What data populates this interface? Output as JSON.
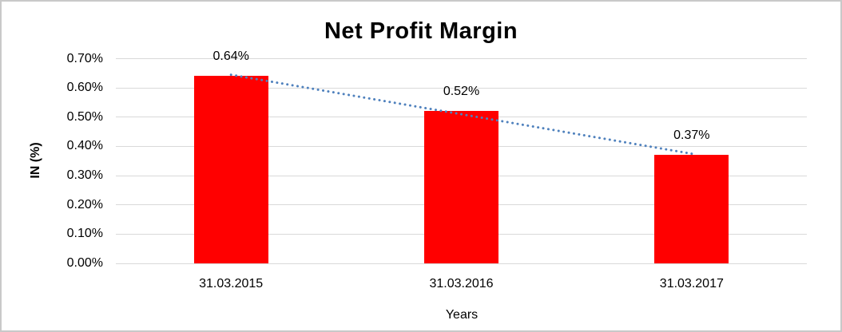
{
  "chart_data": {
    "type": "bar",
    "title": "Net Profit Margin",
    "xlabel": "Years",
    "ylabel": "IN (%)",
    "categories": [
      "31.03.2015",
      "31.03.2016",
      "31.03.2017"
    ],
    "values": [
      0.64,
      0.52,
      0.37
    ],
    "data_labels": [
      "0.64%",
      "0.52%",
      "0.37%"
    ],
    "y_ticks": [
      "0.00%",
      "0.10%",
      "0.20%",
      "0.30%",
      "0.40%",
      "0.50%",
      "0.60%",
      "0.70%"
    ],
    "ylim": [
      0,
      0.7
    ],
    "grid": "horizontal-only",
    "legend": "none",
    "colors": {
      "bar": "#ff0000",
      "trendline": "#4f81bd",
      "gridline": "#d9d9d9",
      "text": "#000000",
      "border": "#c9c9c9"
    },
    "trendline": {
      "type": "linear",
      "style": "dotted",
      "color": "#4f81bd"
    }
  }
}
